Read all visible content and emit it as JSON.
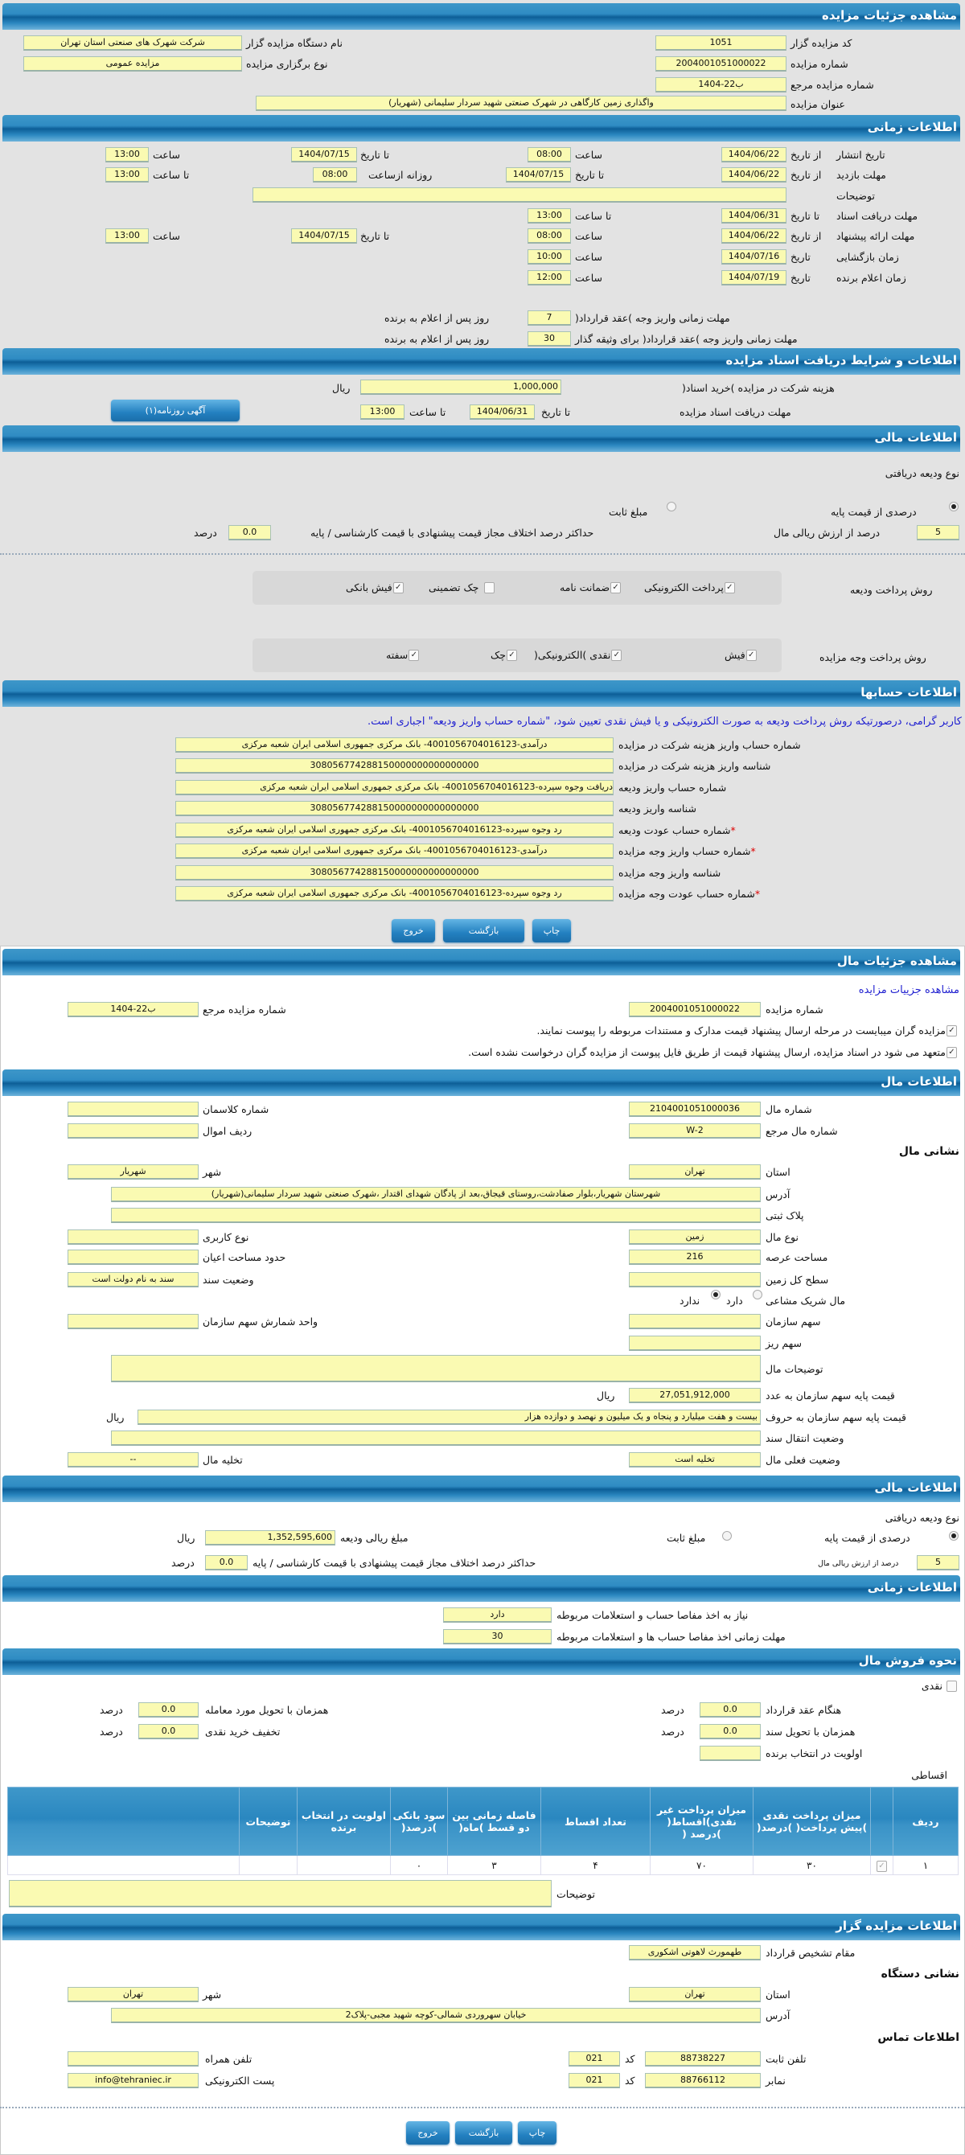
{
  "s1": {
    "title": "مشاهده جزئیات مزایده",
    "code_label": "کد مزایده گزار",
    "code": "1051",
    "org_label": "نام دستگاه مزایده گزار",
    "org": "شرکت شهرک های صنعتی استان تهران",
    "number_label": "شماره مزایده",
    "number": "2004001051000022",
    "type_label": "نوع برگزاری مزایده",
    "type": "مزایده عمومی",
    "ref_label": "شماره مزایده مرجع",
    "ref": "1404-22ب",
    "subject_label": "عنوان مزایده",
    "subject": "واگذاری زمین کارگاهی در شهرک صنعتی شهید سردار سلیمانی (شهریار)"
  },
  "t": {
    "title": "اطلاعات زمانی",
    "publish": {
      "label": "تاریخ انتشار",
      "from": "از تاریخ",
      "from_date": "1404/06/22",
      "time1": "ساعت",
      "from_time": "08:00",
      "to": "تا تاریخ",
      "to_date": "1404/07/15",
      "time2": "ساعت",
      "to_time": "13:00"
    },
    "visit": {
      "label": "مهلت بازدید",
      "from": "از تاریخ",
      "from_date": "1404/06/22",
      "to": "تا تاریخ",
      "to_date": "1404/07/15",
      "daily": "روزانه ازساعت",
      "from_time": "08:00",
      "to_time_label": "تا ساعت",
      "to_time": "13:00"
    },
    "desc_label": "توضیحات",
    "desc": "",
    "docs": {
      "label": "مهلت دریافت اسناد",
      "to": "تا تاریخ",
      "to_date": "1404/06/31",
      "time": "تا ساعت",
      "to_time": "13:00"
    },
    "offer": {
      "label": "مهلت ارائه پیشنهاد",
      "from": "از تاریخ",
      "from_date": "1404/06/22",
      "time1": "ساعت",
      "from_time": "08:00",
      "to": "تا تاریخ",
      "to_date": "1404/07/15",
      "time2": "ساعت",
      "to_time": "13:00"
    },
    "opening": {
      "label": "زمان بازگشایی",
      "date_label": "تاریخ",
      "date": "1404/07/16",
      "time_label": "ساعت",
      "time": "10:00"
    },
    "winner": {
      "label": "زمان اعلام برنده",
      "date_label": "تاریخ",
      "date": "1404/07/19",
      "time_label": "ساعت",
      "time": "12:00"
    },
    "contract1": {
      "label": "مهلت زمانی واریز وجه )عقد قرارداد(",
      "value": "7",
      "suffix": "روز پس از اعلام به برنده"
    },
    "contract2": {
      "label": "مهلت زمانی واریز وجه )عقد قرارداد( برای وثیقه گذار",
      "value": "30",
      "suffix": "روز پس از اعلام به برنده"
    }
  },
  "d": {
    "title": "اطلاعات و شرایط دریافت اسناد مزایده",
    "cost_label": "هزینه شرکت در مزایده )خرید اسناد(",
    "cost": "1,000,000",
    "rial": "ریال",
    "deadline_label": "مهلت دریافت اسناد مزایده",
    "to": "تا تاریخ",
    "date": "1404/06/31",
    "time_label": "تا ساعت",
    "time": "13:00",
    "ad_button": "آگهی روزنامه(۱)"
  },
  "f": {
    "title": "اطلاعات مالی",
    "deposit_type": "نوع ودیعه دریافتی",
    "percent_option": "درصدی از قیمت پایه",
    "fixed_option": "مبلغ ثابت",
    "percent": "5",
    "percent_label": "درصد از ارزش ریالی مال",
    "max_diff_label": "حداکثر درصد اختلاف مجاز قیمت پیشنهادی با قیمت کارشناسی / پایه",
    "max_diff": "0.0",
    "percent_unit": "درصد",
    "deposit_method_label": "روش پرداخت ودیعه",
    "deposit_methods": [
      {
        "label": "پرداخت الکترونیکی",
        "checked": true
      },
      {
        "label": "ضمانت نامه",
        "checked": true
      },
      {
        "label": "چک تضمینی",
        "checked": false
      },
      {
        "label": "فیش بانکی",
        "checked": true
      }
    ],
    "payment_method_label": "روش پرداخت وجه مزایده",
    "payment_methods": [
      {
        "label": "فیش",
        "checked": true
      },
      {
        "label": "نقدی )الکترونیکی(",
        "checked": true
      },
      {
        "label": "چک",
        "checked": true
      },
      {
        "label": "سفته",
        "checked": true
      }
    ]
  },
  "acc": {
    "title": "اطلاعات حسابها",
    "notice": "کاربر گرامی، درصورتیکه روش پرداخت ودیعه به صورت الکترونیکی و یا فیش نقدی تعیین شود، \"شماره حساب واریز ودیعه\" اجباری است.",
    "rows": [
      {
        "label": "شماره حساب واریز هزینه شرکت در مزایده",
        "value": "درآمدی-4001056704016123- بانک مرکزی جمهوری اسلامی ایران شعبه مرکزی"
      },
      {
        "label": "شناسه واریز هزینه شرکت در مزایده",
        "value": "308056774288150000000000000000"
      },
      {
        "label": "شماره حساب واریز ودیعه",
        "value": "دریافت وجوه سپرده-4001056704016123- بانک مرکزی جمهوری اسلامی ایران شعبه مرکزی"
      },
      {
        "label": "شناسه واریز ودیعه",
        "value": "308056774288150000000000000000"
      },
      {
        "label": "شماره حساب عودت ودیعه",
        "value": "رد وجوه سپرده-4001056704016123- بانک مرکزی جمهوری اسلامی ایران شعبه مرکزی",
        "required": "*"
      },
      {
        "label": "شماره حساب واریز وجه مزایده",
        "value": "درآمدی-4001056704016123- بانک مرکزی جمهوری اسلامی ایران شعبه مرکزی",
        "required": "*"
      },
      {
        "label": "شناسه واریز وجه مزایده",
        "value": "308056774288150000000000000000"
      },
      {
        "label": "شماره حساب عودت وجه مزایده",
        "value": "رد وجوه سپرده-4001056704016123- بانک مرکزی جمهوری اسلامی ایران شعبه مرکزی",
        "required": "*"
      }
    ]
  },
  "buttons": {
    "print": "چاپ",
    "back": "بازگشت",
    "exit": "خروج"
  },
  "p": {
    "title": "مشاهده جزئیات مال",
    "link": "مشاهده جزییات مزایده",
    "number_label": "شماره مزایده",
    "number": "2004001051000022",
    "ref_label": "شماره مزایده مرجع",
    "ref": "1404-22ب",
    "check1": "مزایده گران میبایست در مرحله ارسال پیشنهاد قیمت مدارک و مستندات مربوطه را پیوست نمایند.",
    "check2": "متعهد می شود در اسناد مزایده، ارسال پیشنهاد قیمت از طریق فایل پیوست از مزایده گران درخواست نشده است."
  },
  "m": {
    "title": "اطلاعات مال",
    "item_no_label": "شماره مال",
    "item_no": "2104001051000036",
    "class_label": "شماره کلاسمان",
    "class": "",
    "ref_label": "شماره مال مرجع",
    "ref": "W-2",
    "asset_row_label": "ردیف اموال",
    "asset_row": "",
    "address_heading": "نشانی مال",
    "province_label": "استان",
    "province": "تهران",
    "city_label": "شهر",
    "city": "شهریار",
    "address_label": "آدرس",
    "address": "شهرستان شهریار،بلوار صفادشت،روستای قیجاق،بعد از پادگان شهدای اقتدار ،شهرک صنعتی شهید سردار سلیمانی(شهریار)",
    "plate_label": "پلاک ثبتی",
    "plate": "",
    "kind_label": "نوع مال",
    "kind": "زمین",
    "usage_label": "نوع کاربری",
    "usage": "",
    "area_label": "مساحت عرصه",
    "area": "216",
    "building_label": "حدود مساحت اعیان",
    "building": "",
    "total_label": "سطح کل زمین",
    "total": "",
    "deed_label": "وضعیت سند",
    "deed": "سند به نام دولت است",
    "shared_label": "مال شریک مشاعی",
    "shared_yes": "دارد",
    "shared_no": "ندارد",
    "share_label": "سهم سازمان",
    "share": "",
    "share_unit_label": "واحد شمارش سهم سازمان",
    "share_unit": "",
    "sub_share_label": "سهم ریز",
    "sub_share": "",
    "desc_label": "توضیحات مال",
    "desc": "",
    "price_label": "قیمت پایه سهم سازمان به عدد",
    "price": "27,051,912,000",
    "rial": "ریال",
    "price_words_label": "قیمت پایه سهم سازمان به حروف",
    "price_words": "بیست و هفت میلیارد و پنجاه و یک میلیون و نهصد و دوازده هزار",
    "transfer_label": "وضعیت انتقال سند",
    "transfer": "",
    "status_label": "وضعیت فعلی مال",
    "status": "تخلیه است",
    "evac_label": "تخلیه مال",
    "evac": "--"
  },
  "f2": {
    "title": "اطلاعات مالی",
    "deposit_type": "نوع ودیعه دریافتی",
    "percent_option": "درصدی از قیمت پایه",
    "fixed_option": "مبلغ ثابت",
    "amount_label": "مبلغ ریالی ودیعه",
    "amount": "1,352,595,600",
    "rial": "ریال",
    "percent": "5",
    "percent_label": "درصد از ارزش ریالی مال",
    "max_diff_label": "حداکثر درصد اختلاف مجاز قیمت پیشنهادی با قیمت کارشناسی / پایه",
    "max_diff": "0.0",
    "percent_unit": "درصد"
  },
  "t2": {
    "title": "اطلاعات زمانی",
    "clearance_label": "نیاز به اخذ مفاصا حساب و استعلامات مربوطه",
    "clearance": "دارد",
    "clearance_days_label": "مهلت زمانی اخذ مفاصا حساب ها و استعلامات مربوطه",
    "clearance_days": "30"
  },
  "s": {
    "title": "نحوه فروش مال",
    "cash": "نقدی",
    "contract_label": "هنگام عقد قرارداد",
    "contract": "0.0",
    "delivery_label": "همزمان با تحویل مورد معامله",
    "delivery": "0.0",
    "deed_label": "همزمان با تحویل سند",
    "deed": "0.0",
    "discount_label": "تخفیف خرید نقدی",
    "discount": "0.0",
    "priority_label": "اولویت در انتخاب برنده",
    "priority": "",
    "unit": "درصد",
    "installments": "اقساطی",
    "columns": [
      "ردیف",
      "",
      "میزان پرداخت نقدی )پیش پرداخت( )درصد(",
      "میزان پرداخت غیر نقدی)اقساط( )درصد (",
      "تعداد اقساط",
      "فاصله زمانی بین دو قسط )ماه(",
      "سود بانکی )درصد(",
      "اولویت در انتخاب برنده",
      "توضیحات",
      ""
    ],
    "rows": [
      [
        "۱",
        "",
        "۳۰",
        "۷۰",
        "۴",
        "۳",
        "۰",
        "",
        "",
        ""
      ]
    ],
    "desc_label": "توضیحات",
    "desc": ""
  },
  "o": {
    "title": "اطلاعات مزایده گزار",
    "authority_label": "مقام تشخیص قرارداد",
    "authority": "طهمورث لاهوتی اشکوری",
    "address_heading": "نشانی دستگاه",
    "province_label": "استان",
    "province": "تهران",
    "city_label": "شهر",
    "city": "تهران",
    "address_label": "آدرس",
    "address": "خیابان سهروردی شمالی-کوچه شهید مجبی-پلاک2",
    "contact_heading": "اطلاعات تماس",
    "phone_label": "تلفن ثابت",
    "phone": "88738227",
    "code_label": "کد",
    "phone_code": "021",
    "mobile_label": "تلفن همراه",
    "mobile": "",
    "fax_label": "نمابر",
    "fax": "88766112",
    "fax_code": "021",
    "email_label": "پست الکترونیکی",
    "email": "info@tehraniec.ir"
  }
}
